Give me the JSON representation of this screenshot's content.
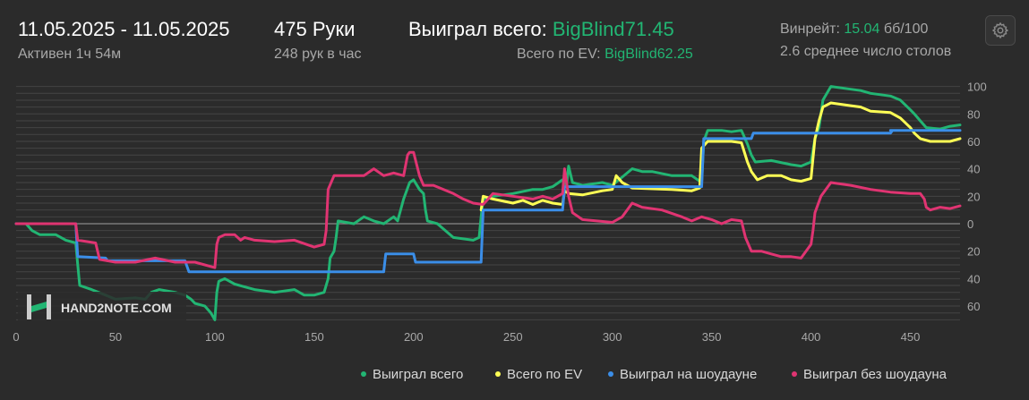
{
  "header": {
    "date_range": "11.05.2025 - 11.05.2025",
    "active_time": "Активен 1ч 54м",
    "hands": "475 Руки",
    "hands_per_hour": "248 рук в час",
    "won_total_label": "Выиграл всего:",
    "won_total_value": "BigBlind71.45",
    "ev_total_label": "Всего по EV:",
    "ev_total_value": "BigBlind62.25",
    "winrate_label": "Винрейт:",
    "winrate_value": "15.04",
    "winrate_unit": "бб/100",
    "avg_tables": "2.6 среднее число столов",
    "settings_icon": "gear-icon"
  },
  "watermark": {
    "logo_text": "HAND2NOTE.COM"
  },
  "colors": {
    "background": "#2b2b2b",
    "won_total": "#22b573",
    "ev": "#ffff55",
    "showdown": "#3b8ee8",
    "no_showdown": "#e03472",
    "grid": "#444444",
    "zero_line": "#8a8a8a",
    "text": "#a8a8a8"
  },
  "chart_data": {
    "type": "line",
    "title": "",
    "xlabel": "",
    "ylabel": "",
    "xlim": [
      0,
      475
    ],
    "ylim": [
      -73,
      103
    ],
    "x_ticks": [
      0,
      50,
      100,
      150,
      200,
      250,
      300,
      350,
      400,
      450
    ],
    "y_ticks": [
      100,
      80,
      60,
      40,
      20,
      0,
      -20,
      -40,
      -60
    ],
    "y_tick_labels": [
      "100",
      "80",
      "60",
      "40",
      "20",
      "0",
      "20",
      "40",
      "60"
    ],
    "grid": true,
    "legend_position": "bottom-right",
    "series": [
      {
        "name": "Выиграл всего",
        "color_key": "won_total",
        "points": [
          [
            0,
            0
          ],
          [
            5,
            0
          ],
          [
            8,
            -5
          ],
          [
            12,
            -8
          ],
          [
            20,
            -8
          ],
          [
            25,
            -12
          ],
          [
            30,
            -14
          ],
          [
            31,
            -30
          ],
          [
            32,
            -45
          ],
          [
            38,
            -48
          ],
          [
            45,
            -52
          ],
          [
            50,
            -55
          ],
          [
            60,
            -54
          ],
          [
            65,
            -55
          ],
          [
            68,
            -50
          ],
          [
            72,
            -48
          ],
          [
            80,
            -50
          ],
          [
            85,
            -52
          ],
          [
            88,
            -55
          ],
          [
            90,
            -58
          ],
          [
            95,
            -60
          ],
          [
            98,
            -65
          ],
          [
            100,
            -70
          ],
          [
            101,
            -50
          ],
          [
            102,
            -42
          ],
          [
            105,
            -40
          ],
          [
            110,
            -44
          ],
          [
            115,
            -46
          ],
          [
            120,
            -48
          ],
          [
            130,
            -50
          ],
          [
            140,
            -48
          ],
          [
            145,
            -52
          ],
          [
            150,
            -52
          ],
          [
            155,
            -50
          ],
          [
            157,
            -40
          ],
          [
            158,
            -25
          ],
          [
            160,
            -20
          ],
          [
            161,
            -10
          ],
          [
            162,
            2
          ],
          [
            170,
            0
          ],
          [
            175,
            5
          ],
          [
            180,
            2
          ],
          [
            185,
            0
          ],
          [
            190,
            5
          ],
          [
            192,
            2
          ],
          [
            195,
            18
          ],
          [
            198,
            30
          ],
          [
            200,
            32
          ],
          [
            203,
            25
          ],
          [
            205,
            22
          ],
          [
            206,
            10
          ],
          [
            207,
            2
          ],
          [
            212,
            0
          ],
          [
            220,
            -10
          ],
          [
            230,
            -12
          ],
          [
            233,
            -10
          ],
          [
            234,
            5
          ],
          [
            235,
            18
          ],
          [
            240,
            20
          ],
          [
            250,
            22
          ],
          [
            260,
            25
          ],
          [
            265,
            25
          ],
          [
            270,
            27
          ],
          [
            275,
            32
          ],
          [
            277,
            28
          ],
          [
            278,
            42
          ],
          [
            280,
            30
          ],
          [
            285,
            28
          ],
          [
            295,
            30
          ],
          [
            300,
            28
          ],
          [
            310,
            40
          ],
          [
            315,
            38
          ],
          [
            320,
            38
          ],
          [
            330,
            35
          ],
          [
            340,
            35
          ],
          [
            345,
            30
          ],
          [
            346,
            60
          ],
          [
            348,
            68
          ],
          [
            355,
            68
          ],
          [
            360,
            67
          ],
          [
            365,
            68
          ],
          [
            368,
            58
          ],
          [
            370,
            50
          ],
          [
            372,
            45
          ],
          [
            380,
            46
          ],
          [
            390,
            43
          ],
          [
            395,
            42
          ],
          [
            400,
            45
          ],
          [
            402,
            62
          ],
          [
            404,
            70
          ],
          [
            406,
            90
          ],
          [
            410,
            100
          ],
          [
            420,
            98
          ],
          [
            425,
            97
          ],
          [
            430,
            95
          ],
          [
            440,
            93
          ],
          [
            445,
            90
          ],
          [
            450,
            83
          ],
          [
            452,
            80
          ],
          [
            455,
            75
          ],
          [
            458,
            70
          ],
          [
            465,
            69
          ],
          [
            470,
            71
          ],
          [
            475,
            72
          ]
        ]
      },
      {
        "name": "Всего по EV",
        "color_key": "ev",
        "points": [
          [
            234,
            10
          ],
          [
            235,
            20
          ],
          [
            240,
            18
          ],
          [
            250,
            15
          ],
          [
            255,
            17
          ],
          [
            260,
            14
          ],
          [
            265,
            17
          ],
          [
            270,
            15
          ],
          [
            275,
            14
          ],
          [
            276,
            24
          ],
          [
            278,
            22
          ],
          [
            285,
            21
          ],
          [
            295,
            24
          ],
          [
            300,
            25
          ],
          [
            302,
            35
          ],
          [
            305,
            30
          ],
          [
            310,
            26
          ],
          [
            330,
            25
          ],
          [
            340,
            24
          ],
          [
            344,
            26
          ],
          [
            345,
            55
          ],
          [
            348,
            60
          ],
          [
            360,
            60
          ],
          [
            365,
            59
          ],
          [
            368,
            45
          ],
          [
            370,
            38
          ],
          [
            373,
            32
          ],
          [
            378,
            35
          ],
          [
            385,
            35
          ],
          [
            390,
            32
          ],
          [
            395,
            31
          ],
          [
            400,
            33
          ],
          [
            402,
            62
          ],
          [
            404,
            75
          ],
          [
            406,
            85
          ],
          [
            410,
            88
          ],
          [
            420,
            86
          ],
          [
            425,
            85
          ],
          [
            430,
            82
          ],
          [
            440,
            81
          ],
          [
            445,
            77
          ],
          [
            450,
            70
          ],
          [
            452,
            66
          ],
          [
            455,
            62
          ],
          [
            460,
            60
          ],
          [
            465,
            60
          ],
          [
            470,
            60
          ],
          [
            475,
            62
          ]
        ]
      },
      {
        "name": "Выиграл на шоудауне",
        "color_key": "showdown",
        "points": [
          [
            0,
            0
          ],
          [
            30,
            0
          ],
          [
            31,
            -24
          ],
          [
            45,
            -25
          ],
          [
            46,
            -27
          ],
          [
            85,
            -27
          ],
          [
            87,
            -35
          ],
          [
            185,
            -35
          ],
          [
            186,
            -22
          ],
          [
            200,
            -22
          ],
          [
            201,
            -28
          ],
          [
            234,
            -28
          ],
          [
            235,
            10
          ],
          [
            275,
            10
          ],
          [
            276,
            27
          ],
          [
            345,
            27
          ],
          [
            346,
            62
          ],
          [
            370,
            62
          ],
          [
            371,
            66
          ],
          [
            440,
            66
          ],
          [
            441,
            68
          ],
          [
            440,
            68
          ],
          [
            441,
            68
          ],
          [
            445,
            68
          ],
          [
            450,
            68
          ],
          [
            475,
            68
          ]
        ]
      },
      {
        "name": "Выиграл без шоудауна",
        "color_key": "no_showdown",
        "points": [
          [
            0,
            0
          ],
          [
            30,
            0
          ],
          [
            31,
            -12
          ],
          [
            40,
            -14
          ],
          [
            42,
            -26
          ],
          [
            50,
            -28
          ],
          [
            60,
            -28
          ],
          [
            70,
            -25
          ],
          [
            80,
            -28
          ],
          [
            90,
            -28
          ],
          [
            100,
            -32
          ],
          [
            101,
            -15
          ],
          [
            102,
            -10
          ],
          [
            105,
            -8
          ],
          [
            110,
            -8
          ],
          [
            113,
            -12
          ],
          [
            115,
            -10
          ],
          [
            120,
            -12
          ],
          [
            130,
            -13
          ],
          [
            140,
            -12
          ],
          [
            150,
            -17
          ],
          [
            155,
            -15
          ],
          [
            156,
            -5
          ],
          [
            157,
            25
          ],
          [
            160,
            35
          ],
          [
            170,
            35
          ],
          [
            175,
            35
          ],
          [
            180,
            40
          ],
          [
            185,
            35
          ],
          [
            190,
            37
          ],
          [
            195,
            35
          ],
          [
            197,
            50
          ],
          [
            198,
            52
          ],
          [
            200,
            52
          ],
          [
            203,
            35
          ],
          [
            205,
            28
          ],
          [
            210,
            28
          ],
          [
            220,
            22
          ],
          [
            225,
            18
          ],
          [
            230,
            15
          ],
          [
            235,
            14
          ],
          [
            240,
            22
          ],
          [
            250,
            20
          ],
          [
            260,
            18
          ],
          [
            265,
            20
          ],
          [
            270,
            18
          ],
          [
            275,
            22
          ],
          [
            276,
            40
          ],
          [
            278,
            20
          ],
          [
            280,
            8
          ],
          [
            285,
            3
          ],
          [
            300,
            1
          ],
          [
            305,
            5
          ],
          [
            310,
            15
          ],
          [
            315,
            12
          ],
          [
            325,
            10
          ],
          [
            335,
            5
          ],
          [
            340,
            2
          ],
          [
            345,
            5
          ],
          [
            350,
            3
          ],
          [
            355,
            0
          ],
          [
            360,
            3
          ],
          [
            365,
            2
          ],
          [
            367,
            -10
          ],
          [
            370,
            -20
          ],
          [
            375,
            -20
          ],
          [
            380,
            -22
          ],
          [
            385,
            -24
          ],
          [
            390,
            -24
          ],
          [
            395,
            -25
          ],
          [
            400,
            -15
          ],
          [
            401,
            -5
          ],
          [
            402,
            8
          ],
          [
            405,
            20
          ],
          [
            410,
            30
          ],
          [
            420,
            28
          ],
          [
            430,
            25
          ],
          [
            440,
            23
          ],
          [
            450,
            22
          ],
          [
            455,
            22
          ],
          [
            457,
            18
          ],
          [
            458,
            12
          ],
          [
            460,
            10
          ],
          [
            465,
            12
          ],
          [
            470,
            11
          ],
          [
            475,
            13
          ]
        ]
      }
    ]
  }
}
